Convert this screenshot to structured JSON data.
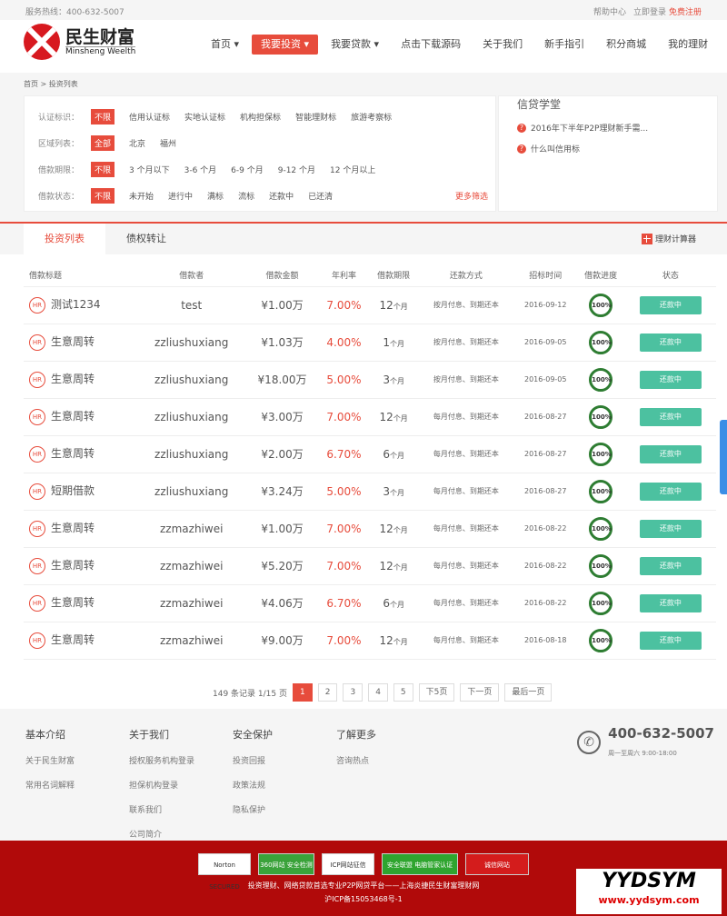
{
  "topbar": {
    "hotline": "服务热线：400-632-5007",
    "help": "帮助中心",
    "login": "立即登录",
    "register": "免费注册"
  },
  "logo": {
    "cn": "民生财富",
    "en": "Minsheng Weelth"
  },
  "nav": [
    {
      "label": "首页 ▾"
    },
    {
      "label": "我要投资 ▾"
    },
    {
      "label": "我要贷款 ▾"
    },
    {
      "label": "点击下载源码"
    },
    {
      "label": "关于我们"
    },
    {
      "label": "新手指引"
    },
    {
      "label": "积分商城"
    },
    {
      "label": "我的理财"
    }
  ],
  "breadcrumb": "首页 > 投资列表",
  "filters": [
    {
      "label": "认证标识：",
      "options": [
        "不限",
        "信用认证标",
        "实地认证标",
        "机构担保标",
        "智能理财标",
        "旅游考察标"
      ]
    },
    {
      "label": "区域列表：",
      "options": [
        "全部",
        "北京",
        "福州"
      ]
    },
    {
      "label": "借款期限：",
      "options": [
        "不限",
        "3 个月以下",
        "3-6 个月",
        "6-9 个月",
        "9-12 个月",
        "12 个月以上"
      ]
    },
    {
      "label": "借款状态：",
      "options": [
        "不限",
        "未开始",
        "进行中",
        "满标",
        "流标",
        "还款中",
        "已还清"
      ]
    }
  ],
  "more_filter": "更多筛选",
  "side": {
    "title": "信贷学堂",
    "items": [
      "2016年下半年P2P理财新手需...",
      "什么叫信用标"
    ]
  },
  "tabs": [
    "投资列表",
    "债权转让"
  ],
  "calculator": "理财计算器",
  "table": {
    "headers": [
      "借款标题",
      "借款者",
      "借款金额",
      "年利率",
      "借款期限",
      "还款方式",
      "招标时间",
      "借款进度",
      "状态"
    ],
    "rows": [
      {
        "title": "测试1234",
        "borrower": "test",
        "amount": "¥1.00万",
        "rate": "7.00%",
        "term": "12",
        "unit": "个月",
        "method": "按月付息、到期还本",
        "date": "2016-09-12",
        "progress": "100%",
        "status": "还款中"
      },
      {
        "title": "生意周转",
        "borrower": "zzliushuxiang",
        "amount": "¥1.03万",
        "rate": "4.00%",
        "term": "1",
        "unit": "个月",
        "method": "按月付息、到期还本",
        "date": "2016-09-05",
        "progress": "100%",
        "status": "还款中"
      },
      {
        "title": "生意周转",
        "borrower": "zzliushuxiang",
        "amount": "¥18.00万",
        "rate": "5.00%",
        "term": "3",
        "unit": "个月",
        "method": "按月付息、到期还本",
        "date": "2016-09-05",
        "progress": "100%",
        "status": "还款中"
      },
      {
        "title": "生意周转",
        "borrower": "zzliushuxiang",
        "amount": "¥3.00万",
        "rate": "7.00%",
        "term": "12",
        "unit": "个月",
        "method": "每月付息、到期还本",
        "date": "2016-08-27",
        "progress": "100%",
        "status": "还款中"
      },
      {
        "title": "生意周转",
        "borrower": "zzliushuxiang",
        "amount": "¥2.00万",
        "rate": "6.70%",
        "term": "6",
        "unit": "个月",
        "method": "每月付息、到期还本",
        "date": "2016-08-27",
        "progress": "100%",
        "status": "还款中"
      },
      {
        "title": "短期借款",
        "borrower": "zzliushuxiang",
        "amount": "¥3.24万",
        "rate": "5.00%",
        "term": "3",
        "unit": "个月",
        "method": "每月付息、到期还本",
        "date": "2016-08-27",
        "progress": "100%",
        "status": "还款中"
      },
      {
        "title": "生意周转",
        "borrower": "zzmazhiwei",
        "amount": "¥1.00万",
        "rate": "7.00%",
        "term": "12",
        "unit": "个月",
        "method": "每月付息、到期还本",
        "date": "2016-08-22",
        "progress": "100%",
        "status": "还款中"
      },
      {
        "title": "生意周转",
        "borrower": "zzmazhiwei",
        "amount": "¥5.20万",
        "rate": "7.00%",
        "term": "12",
        "unit": "个月",
        "method": "每月付息、到期还本",
        "date": "2016-08-22",
        "progress": "100%",
        "status": "还款中"
      },
      {
        "title": "生意周转",
        "borrower": "zzmazhiwei",
        "amount": "¥4.06万",
        "rate": "6.70%",
        "term": "6",
        "unit": "个月",
        "method": "每月付息、到期还本",
        "date": "2016-08-22",
        "progress": "100%",
        "status": "还款中"
      },
      {
        "title": "生意周转",
        "borrower": "zzmazhiwei",
        "amount": "¥9.00万",
        "rate": "7.00%",
        "term": "12",
        "unit": "个月",
        "method": "每月付息、到期还本",
        "date": "2016-08-18",
        "progress": "100%",
        "status": "还款中"
      }
    ]
  },
  "pager": {
    "summary": "149 条记录 1/15 页",
    "pages": [
      "1",
      "2",
      "3",
      "4",
      "5",
      "下5页",
      "下一页",
      "最后一页"
    ]
  },
  "footer": {
    "cols": [
      {
        "title": "基本介绍",
        "links": [
          "关于民生财富",
          "常用名词解释"
        ]
      },
      {
        "title": "关于我们",
        "links": [
          "授权服务机构登录",
          "担保机构登录",
          "联系我们",
          "公司简介"
        ]
      },
      {
        "title": "安全保护",
        "links": [
          "投资回报",
          "政策法规",
          "隐私保护"
        ]
      },
      {
        "title": "了解更多",
        "links": [
          "咨询热点"
        ]
      }
    ],
    "phone": "400-632-5007",
    "hours": "周一至周六 9:00-18:00"
  },
  "bottom": {
    "badges": [
      "Norton SECURED",
      "360网站 安全检测",
      "ICP网站征信",
      "安全联盟 电脑管家认证",
      "诚信网站"
    ],
    "slogan": "投资理财、网络贷款首选专业P2P网贷平台——上海炎捷民生财富理财网",
    "icp": "沪ICP备15053468号-1"
  },
  "watermark": {
    "a": "YYDSYM",
    "b": "www.yydsym.com"
  },
  "colors": {
    "accent": "#e74c3c",
    "status": "#4cc1a0",
    "footer": "#b10a0a"
  }
}
